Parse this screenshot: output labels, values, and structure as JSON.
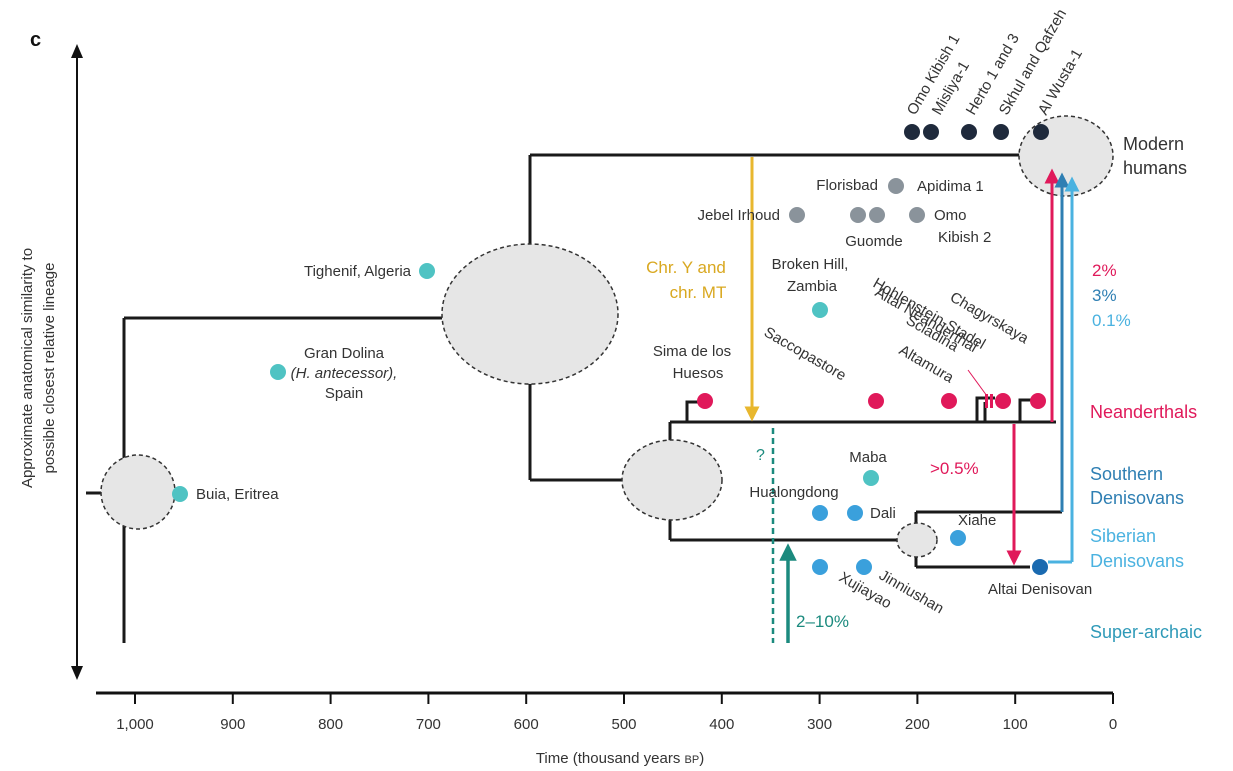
{
  "panel_letter": "c",
  "y_axis_title_line1": "Approximate anatomical similarity to",
  "y_axis_title_line2": "possible closest relative lineage",
  "x_axis": {
    "title": "Time (thousand years",
    "title_unit": "BP",
    "title_close": ")",
    "ticks": [
      "1,000",
      "900",
      "800",
      "700",
      "600",
      "500",
      "400",
      "300",
      "200",
      "100",
      "0"
    ]
  },
  "lineages": {
    "modern": [
      "Modern",
      "humans"
    ],
    "neanderthals": "Neanderthals",
    "southern": [
      "Southern",
      "Denisovans"
    ],
    "siberian": [
      "Siberian",
      "Denisovans"
    ],
    "superarchaic": "Super-archaic"
  },
  "fossils": {
    "buia": "Buia, Eritrea",
    "gran_dolina": [
      "Gran Dolina",
      "(H. antecessor),",
      "Spain"
    ],
    "tighenif": "Tighenif, Algeria",
    "jebel_irhoud": "Jebel Irhoud",
    "florisbad": "Florisbad",
    "apidima": "Apidima 1",
    "guomde": "Guomde",
    "omo_kibish2": [
      "Omo",
      "Kibish 2"
    ],
    "broken_hill": [
      "Broken Hill,",
      "Zambia"
    ],
    "sima": [
      "Sima de los",
      "Huesos"
    ],
    "saccopastore": "Saccopastore",
    "altamura": "Altamura",
    "scladina": "Scladina",
    "altai_neanderthal": "Altai Neanderthal",
    "hohlenstein": "Hohlenstein-Stadel",
    "chagyrskaya": "Chagyrskaya",
    "maba": "Maba",
    "hualongdong": "Hualongdong",
    "dali": "Dali",
    "xiahe": "Xiahe",
    "xujiayao": "Xujiayao",
    "jinniushan": "Jinniushan",
    "altai_denisovan": "Altai Denisovan",
    "omo_kibish1": "Omo Kibish 1",
    "misliya": "Misliya-1",
    "herto": "Herto 1 and 3",
    "skhul": "Skhul and Qafzeh",
    "al_wusta": "Al Wusta-1"
  },
  "annotations": {
    "chr_line1": "Chr. Y and",
    "chr_line2": "chr. MT",
    "question": "?",
    "pct_2_10": "2–10%",
    "pct_05": ">0.5%",
    "pct_2": "2%",
    "pct_3": "3%",
    "pct_01": "0.1%"
  },
  "colors": {
    "tree": "#1a1a1a",
    "node_fill": "#e6e6e6",
    "early_fossil": "#4fc3c3",
    "gray_fossil": "#8a939b",
    "modern_fossil": "#1f2a3c",
    "neanderthal": "#e0195a",
    "denisovan_fossil": "#3aa0dc",
    "altai_denisovan": "#1a6ab0",
    "chr_arrow": "#e8b72e",
    "introgression_teal": "#1b8a7e",
    "southern_blue": "#2f7fb3",
    "siberian_blue": "#4ab2e0"
  }
}
